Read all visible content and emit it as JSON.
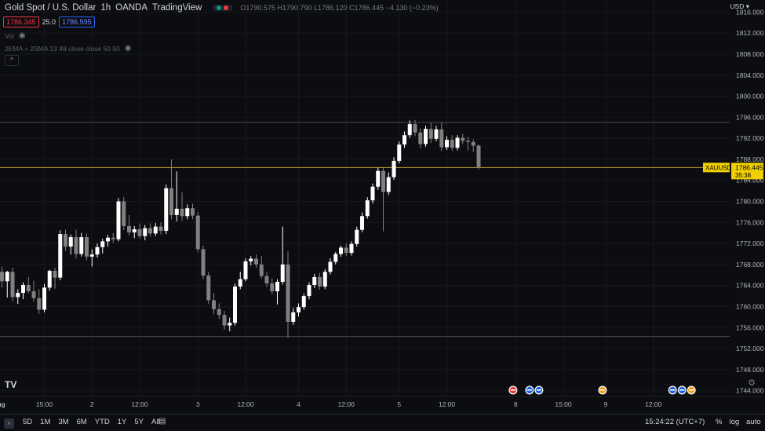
{
  "header": {
    "title": "Gold Spot / U.S. Dollar",
    "interval": "1h",
    "broker": "OANDA",
    "platform": "TradingView",
    "ohlc": {
      "o_label": "O",
      "o": "1790.575",
      "h_label": "H",
      "h": "1790.790",
      "l_label": "L",
      "l": "1786.120",
      "c_label": "C",
      "c": "1786.445",
      "change": "−4.130 (−0.23%)"
    },
    "bid": "1786.345",
    "spread": "25.0",
    "ask": "1786.595",
    "status_colors": [
      "#089981",
      "#f23645"
    ]
  },
  "indicators": {
    "volume_label": "Vol",
    "ma_label": "2EMA + 2SMA 13 48 close close 50 50",
    "eye_icon": "eye-icon",
    "collapse_glyph": "^"
  },
  "currency_menu": "USD",
  "price_tag": {
    "symbol": "XAUUSD",
    "price": "1786.445",
    "countdown": "35:38"
  },
  "bottom_bar": {
    "close_glyph": "×",
    "ranges": [
      "5D",
      "1M",
      "3M",
      "6M",
      "YTD",
      "1Y",
      "5Y",
      "All"
    ],
    "time": "15:24:22 (UTC+7)",
    "options": [
      "%",
      "log",
      "auto"
    ]
  },
  "chart_data": {
    "type": "candlestick",
    "symbol": "XAUUSD",
    "y_tick_labels": [
      "1816.000",
      "1812.000",
      "1808.000",
      "1804.000",
      "1800.000",
      "1796.000",
      "1792.000",
      "1788.000",
      "1784.000",
      "1780.000",
      "1776.000",
      "1772.000",
      "1768.000",
      "1764.000",
      "1760.000",
      "1756.000",
      "1752.000",
      "1748.000",
      "1744.000"
    ],
    "y_ticks": [
      1816,
      1812,
      1808,
      1804,
      1800,
      1796,
      1792,
      1788,
      1784,
      1780,
      1776,
      1772,
      1768,
      1764,
      1760,
      1756,
      1752,
      1748,
      1744
    ],
    "ylim": [
      1742.9,
      1818.3
    ],
    "x_tick_labels": [
      "Aug",
      "15:00",
      "2",
      "12:00",
      "3",
      "12:00",
      "4",
      "12:00",
      "5",
      "12:00",
      "8",
      "15:00",
      "9",
      "12:00"
    ],
    "x_tick_bar_index": [
      -0.6,
      8,
      17,
      26,
      37,
      46,
      56,
      65,
      75,
      84,
      97,
      106,
      114,
      123
    ],
    "horizontal_lines": [
      1795.0,
      1754.3
    ],
    "last_price": 1786.445,
    "candles": [
      {
        "o": 1766.6,
        "h": 1767.6,
        "l": 1763.6,
        "c": 1764.8
      },
      {
        "o": 1764.8,
        "h": 1766.8,
        "l": 1761.7,
        "c": 1766.6
      },
      {
        "o": 1766.6,
        "h": 1767.4,
        "l": 1761.0,
        "c": 1761.8
      },
      {
        "o": 1761.8,
        "h": 1763.3,
        "l": 1760.5,
        "c": 1762.6
      },
      {
        "o": 1762.6,
        "h": 1764.6,
        "l": 1761.4,
        "c": 1764.1
      },
      {
        "o": 1764.1,
        "h": 1765.6,
        "l": 1762.5,
        "c": 1762.9
      },
      {
        "o": 1762.9,
        "h": 1764.9,
        "l": 1760.9,
        "c": 1761.6
      },
      {
        "o": 1761.6,
        "h": 1763.3,
        "l": 1758.6,
        "c": 1759.4
      },
      {
        "o": 1759.4,
        "h": 1764.3,
        "l": 1758.9,
        "c": 1763.6
      },
      {
        "o": 1763.6,
        "h": 1767.0,
        "l": 1763.0,
        "c": 1766.8
      },
      {
        "o": 1766.8,
        "h": 1767.4,
        "l": 1763.4,
        "c": 1765.5
      },
      {
        "o": 1765.5,
        "h": 1774.5,
        "l": 1765.0,
        "c": 1773.8
      },
      {
        "o": 1773.8,
        "h": 1774.6,
        "l": 1770.6,
        "c": 1771.4
      },
      {
        "o": 1771.4,
        "h": 1773.7,
        "l": 1769.9,
        "c": 1773.2
      },
      {
        "o": 1773.2,
        "h": 1774.6,
        "l": 1769.1,
        "c": 1770.0
      },
      {
        "o": 1770.0,
        "h": 1774.0,
        "l": 1769.5,
        "c": 1773.2
      },
      {
        "o": 1773.2,
        "h": 1773.9,
        "l": 1768.8,
        "c": 1769.5
      },
      {
        "o": 1769.5,
        "h": 1770.9,
        "l": 1767.6,
        "c": 1769.9
      },
      {
        "o": 1769.9,
        "h": 1772.0,
        "l": 1769.3,
        "c": 1771.3
      },
      {
        "o": 1771.3,
        "h": 1772.9,
        "l": 1770.1,
        "c": 1772.4
      },
      {
        "o": 1772.4,
        "h": 1773.6,
        "l": 1771.4,
        "c": 1773.1
      },
      {
        "o": 1773.1,
        "h": 1774.0,
        "l": 1772.1,
        "c": 1772.8
      },
      {
        "o": 1772.8,
        "h": 1780.6,
        "l": 1772.4,
        "c": 1780.0
      },
      {
        "o": 1780.0,
        "h": 1780.8,
        "l": 1774.5,
        "c": 1775.3
      },
      {
        "o": 1775.3,
        "h": 1777.4,
        "l": 1773.5,
        "c": 1774.1
      },
      {
        "o": 1774.1,
        "h": 1775.3,
        "l": 1773.0,
        "c": 1774.7
      },
      {
        "o": 1774.7,
        "h": 1775.8,
        "l": 1772.9,
        "c": 1773.4
      },
      {
        "o": 1773.4,
        "h": 1775.5,
        "l": 1772.6,
        "c": 1774.9
      },
      {
        "o": 1774.9,
        "h": 1775.8,
        "l": 1773.3,
        "c": 1773.9
      },
      {
        "o": 1773.9,
        "h": 1775.9,
        "l": 1773.4,
        "c": 1775.2
      },
      {
        "o": 1775.2,
        "h": 1776.0,
        "l": 1773.7,
        "c": 1774.4
      },
      {
        "o": 1774.4,
        "h": 1783.2,
        "l": 1773.8,
        "c": 1782.5
      },
      {
        "o": 1782.5,
        "h": 1788.0,
        "l": 1776.6,
        "c": 1777.4
      },
      {
        "o": 1777.4,
        "h": 1785.7,
        "l": 1776.2,
        "c": 1778.6
      },
      {
        "o": 1778.6,
        "h": 1781.7,
        "l": 1776.3,
        "c": 1777.2
      },
      {
        "o": 1777.2,
        "h": 1779.4,
        "l": 1776.6,
        "c": 1778.7
      },
      {
        "o": 1778.7,
        "h": 1779.6,
        "l": 1776.6,
        "c": 1777.3
      },
      {
        "o": 1777.3,
        "h": 1778.0,
        "l": 1770.3,
        "c": 1770.9
      },
      {
        "o": 1770.9,
        "h": 1771.6,
        "l": 1765.2,
        "c": 1765.9
      },
      {
        "o": 1765.9,
        "h": 1766.6,
        "l": 1760.5,
        "c": 1761.2
      },
      {
        "o": 1761.2,
        "h": 1762.6,
        "l": 1758.6,
        "c": 1759.5
      },
      {
        "o": 1759.5,
        "h": 1760.6,
        "l": 1757.6,
        "c": 1758.4
      },
      {
        "o": 1758.4,
        "h": 1759.2,
        "l": 1755.6,
        "c": 1756.4
      },
      {
        "o": 1756.4,
        "h": 1757.9,
        "l": 1755.3,
        "c": 1756.9
      },
      {
        "o": 1756.9,
        "h": 1764.4,
        "l": 1756.4,
        "c": 1763.8
      },
      {
        "o": 1763.8,
        "h": 1766.6,
        "l": 1763.3,
        "c": 1765.2
      },
      {
        "o": 1765.2,
        "h": 1769.2,
        "l": 1764.8,
        "c": 1768.6
      },
      {
        "o": 1768.6,
        "h": 1769.6,
        "l": 1767.8,
        "c": 1769.1
      },
      {
        "o": 1769.1,
        "h": 1769.9,
        "l": 1767.4,
        "c": 1768.0
      },
      {
        "o": 1768.0,
        "h": 1769.6,
        "l": 1765.3,
        "c": 1765.8
      },
      {
        "o": 1765.8,
        "h": 1766.6,
        "l": 1763.7,
        "c": 1764.4
      },
      {
        "o": 1764.4,
        "h": 1765.4,
        "l": 1762.3,
        "c": 1762.9
      },
      {
        "o": 1762.9,
        "h": 1765.2,
        "l": 1760.4,
        "c": 1764.7
      },
      {
        "o": 1764.7,
        "h": 1775.2,
        "l": 1764.2,
        "c": 1768.0
      },
      {
        "o": 1768.0,
        "h": 1770.5,
        "l": 1754.1,
        "c": 1757.1
      },
      {
        "o": 1757.1,
        "h": 1759.7,
        "l": 1756.5,
        "c": 1758.9
      },
      {
        "o": 1758.9,
        "h": 1760.6,
        "l": 1758.1,
        "c": 1759.9
      },
      {
        "o": 1759.9,
        "h": 1762.5,
        "l": 1759.4,
        "c": 1762.0
      },
      {
        "o": 1762.0,
        "h": 1764.6,
        "l": 1761.4,
        "c": 1764.1
      },
      {
        "o": 1764.1,
        "h": 1766.2,
        "l": 1763.5,
        "c": 1765.6
      },
      {
        "o": 1765.6,
        "h": 1766.4,
        "l": 1763.2,
        "c": 1763.8
      },
      {
        "o": 1763.8,
        "h": 1767.1,
        "l": 1763.3,
        "c": 1766.6
      },
      {
        "o": 1766.6,
        "h": 1769.2,
        "l": 1766.1,
        "c": 1768.5
      },
      {
        "o": 1768.5,
        "h": 1770.4,
        "l": 1768.0,
        "c": 1770.0
      },
      {
        "o": 1770.0,
        "h": 1771.6,
        "l": 1769.5,
        "c": 1771.2
      },
      {
        "o": 1771.2,
        "h": 1772.0,
        "l": 1769.6,
        "c": 1770.2
      },
      {
        "o": 1770.2,
        "h": 1772.4,
        "l": 1769.7,
        "c": 1771.9
      },
      {
        "o": 1771.9,
        "h": 1775.2,
        "l": 1771.4,
        "c": 1774.6
      },
      {
        "o": 1774.6,
        "h": 1777.9,
        "l": 1774.1,
        "c": 1777.2
      },
      {
        "o": 1777.2,
        "h": 1780.8,
        "l": 1776.7,
        "c": 1780.2
      },
      {
        "o": 1780.2,
        "h": 1783.4,
        "l": 1779.6,
        "c": 1782.8
      },
      {
        "o": 1782.8,
        "h": 1786.4,
        "l": 1782.2,
        "c": 1785.8
      },
      {
        "o": 1785.8,
        "h": 1786.4,
        "l": 1774.3,
        "c": 1781.8
      },
      {
        "o": 1781.8,
        "h": 1785.5,
        "l": 1781.2,
        "c": 1784.6
      },
      {
        "o": 1784.6,
        "h": 1788.4,
        "l": 1784.1,
        "c": 1787.7
      },
      {
        "o": 1787.7,
        "h": 1791.4,
        "l": 1787.2,
        "c": 1790.8
      },
      {
        "o": 1790.8,
        "h": 1793.3,
        "l": 1790.2,
        "c": 1792.6
      },
      {
        "o": 1792.6,
        "h": 1795.4,
        "l": 1792.1,
        "c": 1794.7
      },
      {
        "o": 1794.7,
        "h": 1795.5,
        "l": 1792.4,
        "c": 1793.1
      },
      {
        "o": 1793.1,
        "h": 1793.9,
        "l": 1790.1,
        "c": 1790.9
      },
      {
        "o": 1790.9,
        "h": 1794.4,
        "l": 1790.4,
        "c": 1793.8
      },
      {
        "o": 1793.8,
        "h": 1795.0,
        "l": 1791.1,
        "c": 1791.9
      },
      {
        "o": 1791.9,
        "h": 1794.4,
        "l": 1791.4,
        "c": 1793.7
      },
      {
        "o": 1793.7,
        "h": 1795.0,
        "l": 1789.6,
        "c": 1790.3
      },
      {
        "o": 1790.3,
        "h": 1792.4,
        "l": 1789.8,
        "c": 1791.7
      },
      {
        "o": 1791.7,
        "h": 1792.6,
        "l": 1789.6,
        "c": 1790.2
      },
      {
        "o": 1790.2,
        "h": 1792.6,
        "l": 1789.7,
        "c": 1792.1
      },
      {
        "o": 1792.1,
        "h": 1792.9,
        "l": 1790.9,
        "c": 1791.5
      },
      {
        "o": 1791.5,
        "h": 1792.3,
        "l": 1789.7,
        "c": 1791.3
      },
      {
        "o": 1791.3,
        "h": 1791.8,
        "l": 1789.4,
        "c": 1790.6
      },
      {
        "o": 1790.6,
        "h": 1790.8,
        "l": 1786.1,
        "c": 1786.4
      }
    ],
    "event_markers": [
      {
        "bar": 96.5,
        "flags": [
          "us"
        ]
      },
      {
        "bar": 100.5,
        "flags": [
          "eu",
          "eu"
        ]
      },
      {
        "bar": 113.4,
        "flags": [
          "ca"
        ]
      },
      {
        "bar": 128.4,
        "flags": [
          "eu",
          "eu",
          "ca"
        ]
      }
    ],
    "colors": {
      "up": "#ffffff",
      "down": "#808080",
      "price_line": "#b79a2b",
      "price_tag": "#f0d000",
      "hline": "#4a4a4a",
      "grid": "#16181d"
    }
  }
}
